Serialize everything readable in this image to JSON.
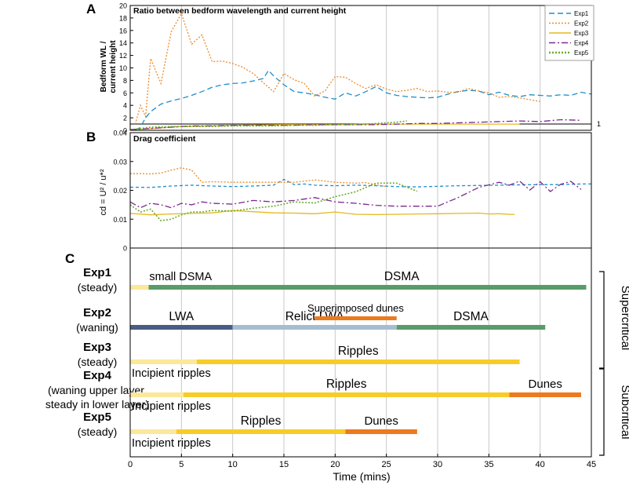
{
  "panels": {
    "a": "A",
    "b": "B",
    "c": "C"
  },
  "chart_data": [
    {
      "type": "line",
      "title": "Ratio between bedform wavelength and current height",
      "ylabel_line1": "Bedform WL /",
      "ylabel_line2": "current height",
      "xlim": [
        0,
        45
      ],
      "ylim": [
        0,
        20
      ],
      "yticks": [
        0,
        2,
        4,
        6,
        8,
        10,
        12,
        14,
        16,
        18,
        20
      ],
      "grid_x": [
        5,
        10,
        15,
        20,
        25,
        30,
        35,
        40
      ],
      "reference_line": {
        "y": 1,
        "label": "1"
      },
      "legend_position": "top-right",
      "series": [
        {
          "name": "Exp1",
          "color": "#1f8fce",
          "dash": "7 4",
          "x": [
            0.5,
            1,
            1.5,
            2,
            3,
            4,
            5,
            6,
            7,
            8,
            9,
            10,
            11,
            12,
            13,
            13.5,
            14,
            15,
            16,
            17,
            18,
            19,
            20,
            21,
            22,
            23,
            24,
            25,
            26,
            27,
            28,
            29,
            30,
            31,
            32,
            33,
            34,
            35,
            36,
            37,
            38,
            39,
            40,
            41,
            42,
            43,
            44,
            45
          ],
          "y": [
            0,
            0.5,
            2,
            3,
            4.2,
            4.7,
            5.1,
            5.6,
            6.2,
            6.9,
            7.3,
            7.5,
            7.6,
            7.9,
            8.3,
            9.6,
            8.7,
            7.3,
            6.2,
            6.0,
            5.7,
            5.3,
            5.0,
            6.0,
            5.5,
            6.2,
            7.0,
            6.0,
            5.6,
            5.4,
            5.3,
            5.2,
            5.3,
            5.8,
            6.2,
            6.4,
            6.3,
            5.7,
            6.1,
            5.6,
            5.4,
            5.7,
            5.6,
            5.5,
            5.7,
            5.6,
            6.1,
            5.8
          ]
        },
        {
          "name": "Exp2",
          "color": "#f08a24",
          "dash": "2 2",
          "x": [
            0.5,
            1,
            1.5,
            2,
            3,
            4,
            5,
            6,
            7,
            8,
            9,
            10,
            11,
            12,
            13,
            14,
            15,
            16,
            17,
            18,
            19,
            20,
            21,
            22,
            23,
            24,
            25,
            26,
            27,
            28,
            29,
            30,
            31,
            32,
            33,
            34,
            35,
            36,
            37,
            38,
            39,
            40
          ],
          "y": [
            1,
            4,
            2.2,
            11.5,
            7.5,
            15.8,
            18.7,
            13.8,
            15.3,
            11,
            11.1,
            10.7,
            10.1,
            9.1,
            7.6,
            6.2,
            9.1,
            8.1,
            7.5,
            5.5,
            6.3,
            8.6,
            8.5,
            7.5,
            6.7,
            7.3,
            6.6,
            6.2,
            6.4,
            6.7,
            6.2,
            6.3,
            6.1,
            6.1,
            6.7,
            6.3,
            6.0,
            5.3,
            5.4,
            5.2,
            4.9,
            4.6
          ]
        },
        {
          "name": "Exp3",
          "color": "#e6b81e",
          "dash": "",
          "x": [
            0,
            5,
            10,
            15,
            20,
            25,
            30,
            35,
            38
          ],
          "y": [
            0.05,
            0.6,
            0.8,
            0.9,
            0.9,
            1.0,
            1.0,
            1.0,
            1.0
          ]
        },
        {
          "name": "Exp4",
          "color": "#7a2a8f",
          "dash": "8 3 2 3",
          "x": [
            0,
            2,
            4,
            6,
            8,
            10,
            12,
            14,
            16,
            18,
            20,
            22,
            24,
            26,
            28,
            30,
            32,
            34,
            36,
            38,
            40,
            42,
            44
          ],
          "y": [
            0.1,
            0.3,
            0.5,
            0.7,
            0.7,
            0.8,
            0.8,
            0.8,
            0.8,
            0.9,
            0.9,
            0.9,
            0.9,
            1.0,
            1.1,
            1.1,
            1.2,
            1.3,
            1.4,
            1.5,
            1.4,
            1.7,
            1.6
          ]
        },
        {
          "name": "Exp5",
          "color": "#6aab2e",
          "dash": "2 2",
          "x": [
            0,
            2,
            4,
            6,
            8,
            10,
            12,
            14,
            16,
            18,
            20,
            22,
            24,
            26,
            27
          ],
          "y": [
            0.1,
            0.5,
            0.6,
            0.6,
            0.6,
            0.7,
            0.7,
            0.7,
            0.8,
            0.8,
            0.9,
            0.9,
            1.1,
            1.3,
            1.5
          ]
        }
      ]
    },
    {
      "type": "line",
      "title": "Drag coefficient",
      "ylabel": "cd = U² / u*²",
      "xlim": [
        0,
        45
      ],
      "ylim": [
        0,
        0.04
      ],
      "yticks": [
        0,
        0.01,
        0.02,
        0.03,
        0.04
      ],
      "ytick_labels": [
        "0",
        "0.01",
        "0.02",
        "0.03",
        "0.04"
      ],
      "grid_x": [
        5,
        10,
        15,
        20,
        25,
        30,
        35,
        40
      ],
      "series": [
        {
          "name": "Exp1",
          "color": "#1f8fce",
          "dash": "4 3",
          "x": [
            0,
            2,
            4,
            6,
            8,
            10,
            12,
            14,
            15,
            16,
            17,
            18,
            20,
            22,
            24,
            26,
            28,
            30,
            32,
            34,
            36,
            38,
            40,
            42,
            44,
            45
          ],
          "y": [
            0.0211,
            0.021,
            0.0215,
            0.0218,
            0.0215,
            0.0213,
            0.0215,
            0.0218,
            0.0238,
            0.022,
            0.0222,
            0.0218,
            0.0216,
            0.0218,
            0.0216,
            0.0213,
            0.0212,
            0.0214,
            0.0216,
            0.0217,
            0.0218,
            0.0219,
            0.022,
            0.022,
            0.0222,
            0.0222
          ]
        },
        {
          "name": "Exp2",
          "color": "#f08a24",
          "dash": "2 2",
          "x": [
            0,
            1,
            2,
            3,
            4,
            5,
            6,
            7,
            8,
            10,
            12,
            14,
            16,
            18,
            20,
            22,
            23,
            24,
            25
          ],
          "y": [
            0.0258,
            0.0258,
            0.0257,
            0.026,
            0.027,
            0.0278,
            0.027,
            0.0228,
            0.023,
            0.0228,
            0.0228,
            0.0228,
            0.0228,
            0.0236,
            0.0228,
            0.0225,
            0.0227,
            0.0219,
            0.0213
          ]
        },
        {
          "name": "Exp3",
          "color": "#e6b81e",
          "dash": "",
          "x": [
            0,
            2,
            4,
            6,
            8,
            10,
            12,
            14,
            16,
            18,
            20,
            22,
            24,
            26,
            28,
            30,
            32,
            34,
            35,
            36,
            37.5
          ],
          "y": [
            0.012,
            0.0115,
            0.0118,
            0.012,
            0.0122,
            0.013,
            0.0126,
            0.0122,
            0.0121,
            0.0119,
            0.0125,
            0.0117,
            0.0116,
            0.0117,
            0.0118,
            0.0119,
            0.012,
            0.0121,
            0.0118,
            0.0119,
            0.0116
          ]
        },
        {
          "name": "Exp4",
          "color": "#7a2a8f",
          "dash": "8 3 2 3",
          "x": [
            0,
            1,
            2,
            3,
            4,
            5,
            6,
            7,
            8,
            10,
            12,
            14,
            16,
            18,
            20,
            22,
            24,
            26,
            28,
            30,
            32,
            34,
            36,
            37,
            38,
            39,
            40,
            41,
            42,
            43,
            44
          ],
          "y": [
            0.016,
            0.014,
            0.0155,
            0.015,
            0.014,
            0.0155,
            0.015,
            0.016,
            0.0155,
            0.0152,
            0.0165,
            0.016,
            0.0165,
            0.0175,
            0.016,
            0.0155,
            0.0148,
            0.0145,
            0.0145,
            0.0145,
            0.0175,
            0.021,
            0.0228,
            0.0218,
            0.0232,
            0.0201,
            0.023,
            0.0196,
            0.0221,
            0.0231,
            0.0203
          ]
        },
        {
          "name": "Exp5",
          "color": "#6aab2e",
          "dash": "2 2",
          "x": [
            0,
            1,
            2,
            3,
            4,
            5,
            6,
            7,
            8,
            10,
            12,
            14,
            16,
            18,
            20,
            22,
            24,
            26,
            28
          ],
          "y": [
            0.015,
            0.0125,
            0.0135,
            0.0095,
            0.01,
            0.0115,
            0.0125,
            0.0125,
            0.013,
            0.0128,
            0.0138,
            0.0145,
            0.016,
            0.0156,
            0.0178,
            0.0195,
            0.0225,
            0.0225,
            0.0197
          ]
        }
      ]
    },
    {
      "type": "gantt",
      "xlabel": "Time (mins)",
      "xlim": [
        0,
        45
      ],
      "xticks": [
        0,
        5,
        10,
        15,
        20,
        25,
        30,
        35,
        40,
        45
      ],
      "grid_x": [
        5,
        10,
        15,
        20,
        25,
        30,
        35,
        40
      ],
      "rows": [
        {
          "name": "Exp1",
          "sub": [
            "(steady)"
          ],
          "bars": [
            {
              "start": 0,
              "end": 1.8,
              "color": "#fbe89a",
              "label": ""
            },
            {
              "start": 1.8,
              "end": 8.5,
              "color": "#5a9b6b",
              "label": "small DSMA"
            },
            {
              "start": 8.5,
              "end": 44.5,
              "color": "#5a9b6b",
              "label": "DSMA"
            }
          ]
        },
        {
          "name": "Exp2",
          "sub": [
            "(waning)"
          ],
          "bars": [
            {
              "start": 0,
              "end": 10,
              "color": "#4a5c86",
              "label": "LWA"
            },
            {
              "start": 10,
              "end": 26,
              "color": "#a6bcd0",
              "label": "Relict LWA"
            },
            {
              "start": 18,
              "end": 26,
              "color": "#ec7a1f",
              "label": "Superimposed dunes"
            },
            {
              "start": 26,
              "end": 40.5,
              "color": "#5a9b6b",
              "label": "DSMA"
            }
          ]
        },
        {
          "name": "Exp3",
          "sub": [
            "(steady)"
          ],
          "bars": [
            {
              "start": 0,
              "end": 6.5,
              "color": "#fbe89a",
              "label": "Incipient ripples"
            },
            {
              "start": 6.5,
              "end": 38,
              "color": "#f7cc27",
              "label": "Ripples"
            }
          ]
        },
        {
          "name": "Exp4",
          "sub": [
            "(waning upper layer,",
            "steady in lower layer)"
          ],
          "bars": [
            {
              "start": 0,
              "end": 5.2,
              "color": "#fbe89a",
              "label": "Incipient ripples"
            },
            {
              "start": 5.2,
              "end": 37,
              "color": "#f7cc27",
              "label": "Ripples"
            },
            {
              "start": 37,
              "end": 44,
              "color": "#ec7a1f",
              "label": "Dunes"
            }
          ]
        },
        {
          "name": "Exp5",
          "sub": [
            "(steady)"
          ],
          "bars": [
            {
              "start": 0,
              "end": 4.5,
              "color": "#fbe89a",
              "label": "Incipient ripples"
            },
            {
              "start": 4.5,
              "end": 21,
              "color": "#f7cc27",
              "label": "Ripples"
            },
            {
              "start": 21,
              "end": 28,
              "color": "#ec7a1f",
              "label": "Dunes"
            }
          ]
        }
      ],
      "regime_labels": {
        "supercritical": "Supercritical",
        "subcritical": "Subcritical"
      }
    }
  ]
}
